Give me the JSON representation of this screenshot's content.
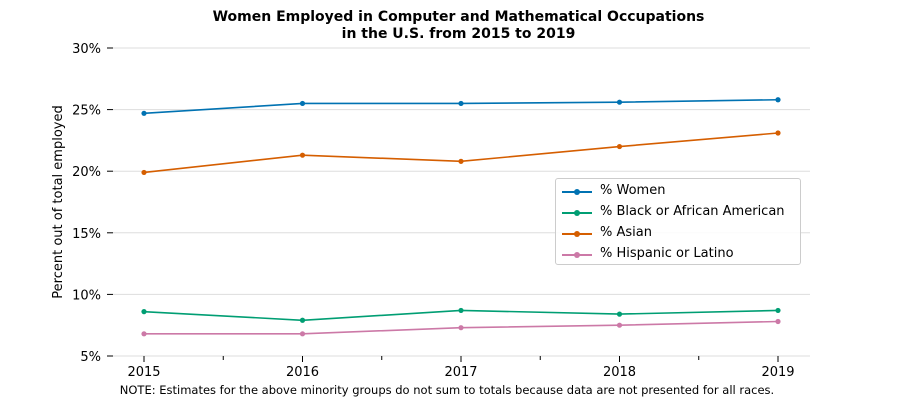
{
  "chart_data": {
    "type": "line",
    "title_line1": "Women Employed in Computer and Mathematical Occupations",
    "title_line2": "in the U.S. from 2015 to 2019",
    "xlabel": "",
    "ylabel": "Percent out of total employed",
    "x": [
      2015,
      2016,
      2017,
      2018,
      2019
    ],
    "x_tick_labels": [
      "2015",
      "2016",
      "2017",
      "2018",
      "2019"
    ],
    "minor_x_ticks": [
      2015.5,
      2016.5,
      2017.5,
      2018.5
    ],
    "ylim": [
      5,
      30
    ],
    "y_ticks": [
      5,
      10,
      15,
      20,
      25,
      30
    ],
    "y_tick_labels": [
      "5%",
      "10%",
      "15%",
      "20%",
      "25%",
      "30%"
    ],
    "grid": "horizontal",
    "legend_position": "center-right",
    "series": [
      {
        "name": "% Women",
        "color": "#0072b2",
        "values": [
          24.7,
          25.5,
          25.5,
          25.6,
          25.8
        ]
      },
      {
        "name": "% Black or African American",
        "color": "#009e73",
        "values": [
          8.6,
          7.9,
          8.7,
          8.4,
          8.7
        ]
      },
      {
        "name": "% Asian",
        "color": "#d55e00",
        "values": [
          19.9,
          21.3,
          20.8,
          22.0,
          23.1
        ]
      },
      {
        "name": "% Hispanic or Latino",
        "color": "#cc79a7",
        "values": [
          6.8,
          6.8,
          7.3,
          7.5,
          7.8
        ]
      }
    ],
    "note": "NOTE: Estimates for the above minority groups do not sum to totals because data are not presented for all races."
  }
}
